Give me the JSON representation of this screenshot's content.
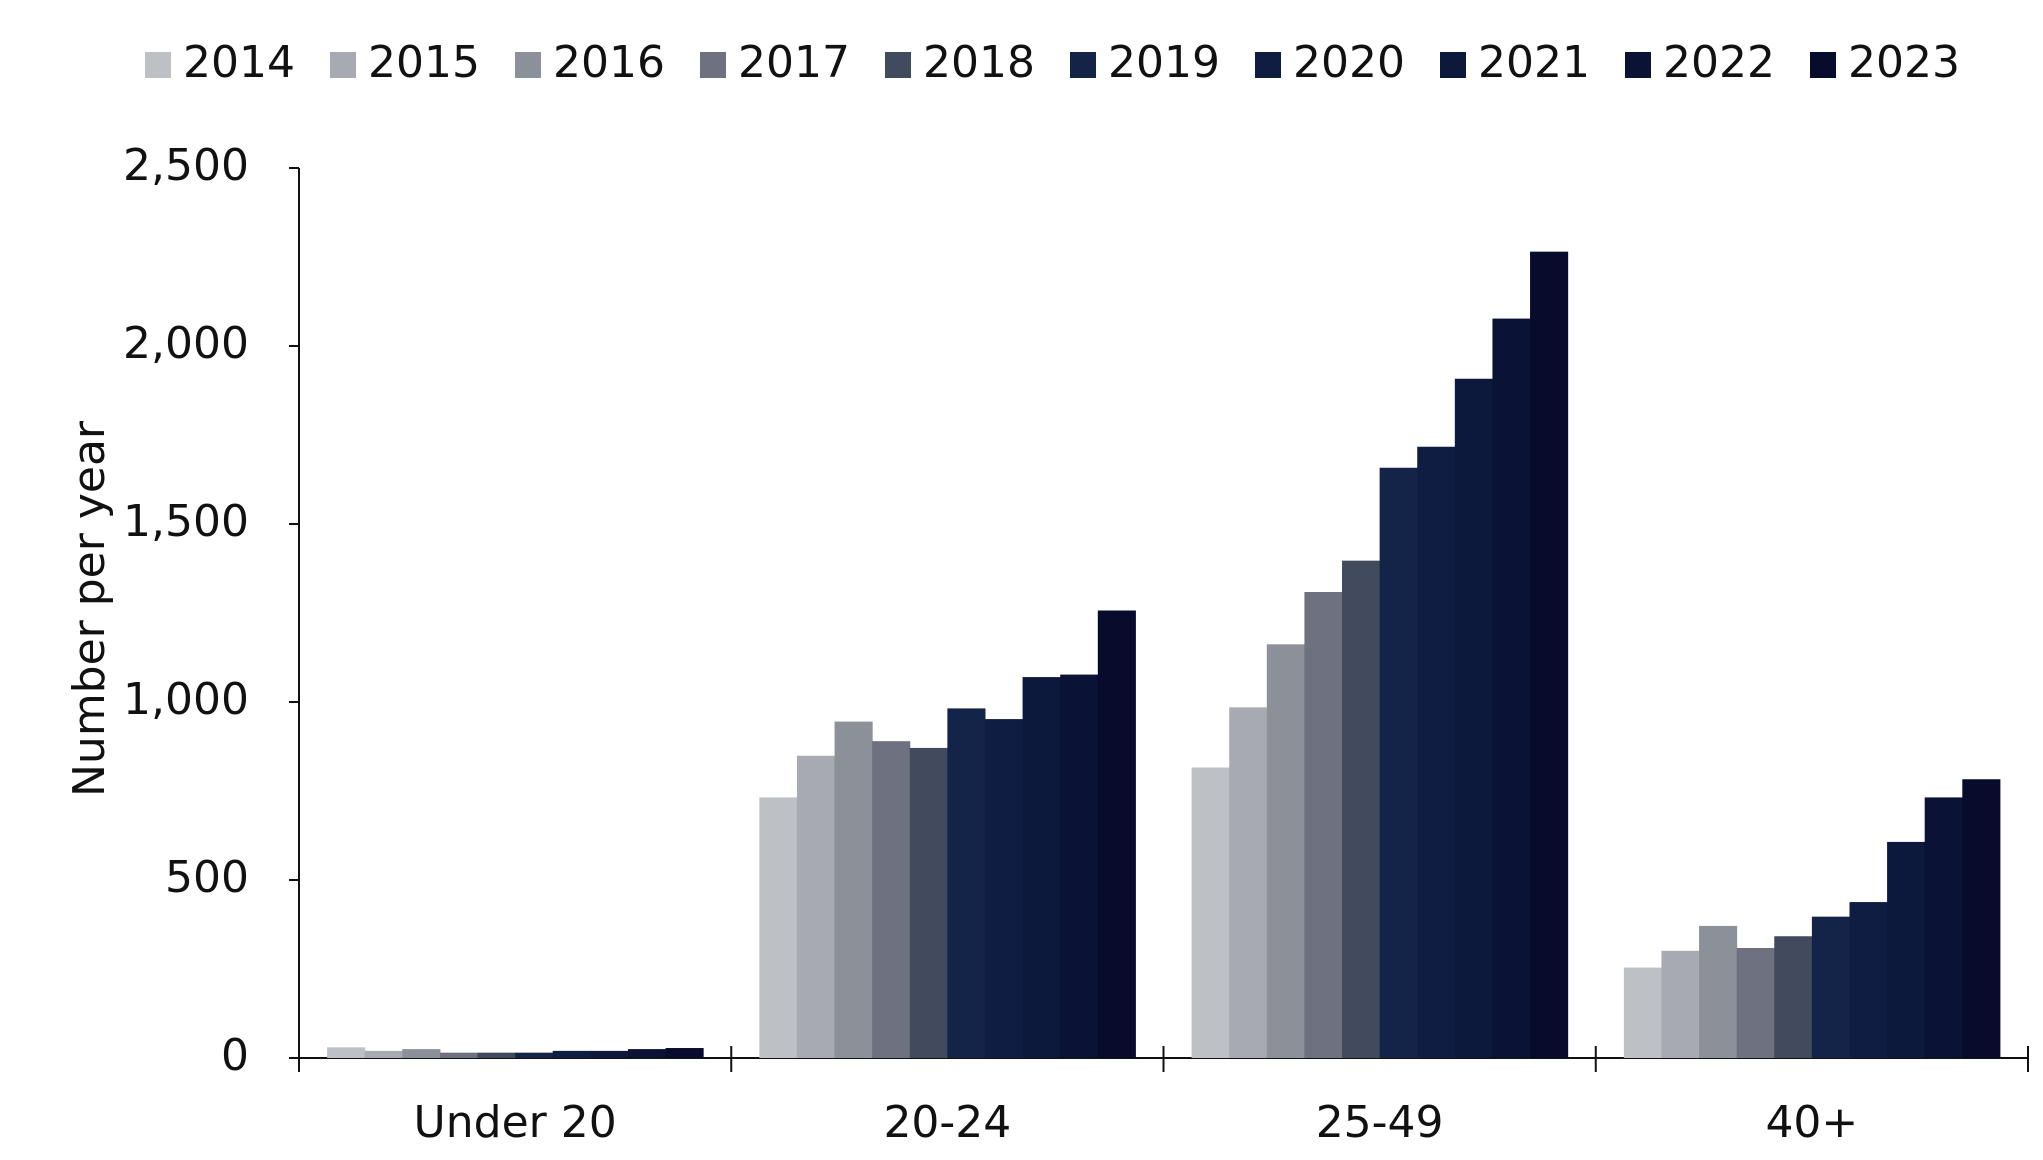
{
  "chart_data": {
    "type": "bar",
    "y_label": "Number per year",
    "categories": [
      "Under 20",
      "20-24",
      "25-49",
      "40+"
    ],
    "series": [
      {
        "name": "2014",
        "color": "#bdc0c4",
        "values": [
          30,
          732,
          816,
          254
        ]
      },
      {
        "name": "2015",
        "color": "#a7aab0",
        "values": [
          20,
          849,
          985,
          301
        ]
      },
      {
        "name": "2016",
        "color": "#8b9099",
        "values": [
          25,
          945,
          1162,
          371
        ]
      },
      {
        "name": "2017",
        "color": "#6d7180",
        "values": [
          15,
          890,
          1309,
          309
        ]
      },
      {
        "name": "2018",
        "color": "#424a5e",
        "values": [
          15,
          871,
          1397,
          342
        ]
      },
      {
        "name": "2019",
        "color": "#142348",
        "values": [
          15,
          982,
          1658,
          397
        ]
      },
      {
        "name": "2020",
        "color": "#101d42",
        "values": [
          20,
          952,
          1717,
          438
        ]
      },
      {
        "name": "2021",
        "color": "#0d183d",
        "values": [
          20,
          1070,
          1908,
          607
        ]
      },
      {
        "name": "2022",
        "color": "#0a1235",
        "values": [
          25,
          1077,
          2077,
          732
        ]
      },
      {
        "name": "2023",
        "color": "#070c2c",
        "values": [
          28,
          1257,
          2265,
          783
        ]
      }
    ],
    "ylim": [
      0,
      2500
    ],
    "yticks": [
      0,
      500,
      {
        "value": 1000,
        "label": "1,000"
      },
      {
        "value": 1500,
        "label": "1,500"
      },
      {
        "value": 2000,
        "label": "2,000"
      },
      {
        "value": 2500,
        "label": "2,500"
      }
    ],
    "grid": false,
    "legend": "top"
  }
}
